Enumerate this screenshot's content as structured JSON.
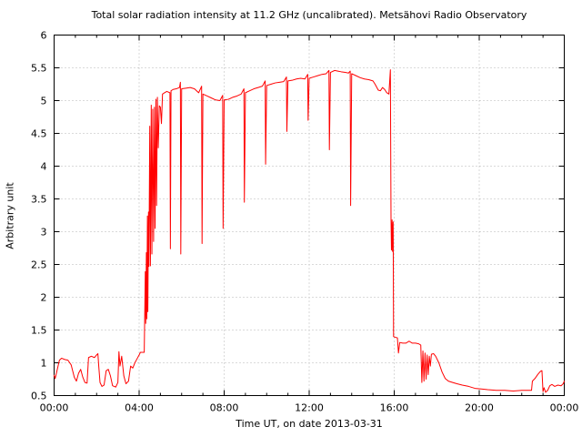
{
  "chart_data": {
    "type": "line",
    "title": "Total solar radiation intensity at 11.2 GHz (uncalibrated). Metsähovi Radio Observatory",
    "xlabel": "Time UT, on date 2013-03-31",
    "ylabel": "Arbitrary unit",
    "xlim": [
      0,
      24
    ],
    "ylim": [
      0.5,
      6
    ],
    "grid": true,
    "legend": "none",
    "line_color": "#ff0000",
    "grid_color": "#b4b4b4",
    "axis_color": "#000000",
    "background_color": "#ffffff",
    "x_major_ticks": [
      {
        "value": 0,
        "label": "00:00"
      },
      {
        "value": 4,
        "label": "04:00"
      },
      {
        "value": 8,
        "label": "08:00"
      },
      {
        "value": 12,
        "label": "12:00"
      },
      {
        "value": 16,
        "label": "16:00"
      },
      {
        "value": 20,
        "label": "20:00"
      },
      {
        "value": 24,
        "label": "00:00"
      }
    ],
    "x_minor_step": 1,
    "y_ticks": [
      {
        "value": 0.5,
        "label": "0.5"
      },
      {
        "value": 1,
        "label": "1"
      },
      {
        "value": 1.5,
        "label": "1.5"
      },
      {
        "value": 2,
        "label": "2"
      },
      {
        "value": 2.5,
        "label": "2.5"
      },
      {
        "value": 3,
        "label": "3"
      },
      {
        "value": 3.5,
        "label": "3.5"
      },
      {
        "value": 4,
        "label": "4"
      },
      {
        "value": 4.5,
        "label": "4.5"
      },
      {
        "value": 5,
        "label": "5"
      },
      {
        "value": 5.5,
        "label": "5.5"
      },
      {
        "value": 6,
        "label": "6"
      }
    ],
    "points": [
      [
        0.0,
        0.81
      ],
      [
        0.05,
        0.76
      ],
      [
        0.15,
        0.9
      ],
      [
        0.25,
        1.04
      ],
      [
        0.35,
        1.07
      ],
      [
        0.5,
        1.05
      ],
      [
        0.65,
        1.04
      ],
      [
        0.8,
        0.97
      ],
      [
        0.95,
        0.78
      ],
      [
        1.05,
        0.72
      ],
      [
        1.15,
        0.84
      ],
      [
        1.25,
        0.9
      ],
      [
        1.35,
        0.78
      ],
      [
        1.45,
        0.7
      ],
      [
        1.55,
        0.69
      ],
      [
        1.62,
        1.08
      ],
      [
        1.75,
        1.1
      ],
      [
        1.9,
        1.08
      ],
      [
        2.0,
        1.12
      ],
      [
        2.06,
        1.14
      ],
      [
        2.1,
        0.95
      ],
      [
        2.16,
        0.7
      ],
      [
        2.25,
        0.64
      ],
      [
        2.35,
        0.66
      ],
      [
        2.45,
        0.88
      ],
      [
        2.55,
        0.9
      ],
      [
        2.65,
        0.8
      ],
      [
        2.75,
        0.65
      ],
      [
        2.9,
        0.63
      ],
      [
        3.0,
        0.7
      ],
      [
        3.05,
        1.17
      ],
      [
        3.1,
        0.95
      ],
      [
        3.18,
        1.1
      ],
      [
        3.28,
        0.8
      ],
      [
        3.38,
        0.68
      ],
      [
        3.5,
        0.72
      ],
      [
        3.6,
        0.95
      ],
      [
        3.7,
        0.92
      ],
      [
        3.8,
        1.0
      ],
      [
        3.9,
        1.06
      ],
      [
        4.0,
        1.12
      ],
      [
        4.06,
        1.16
      ],
      [
        4.24,
        1.16
      ],
      [
        4.26,
        1.64
      ],
      [
        4.29,
        2.39
      ],
      [
        4.31,
        1.6
      ],
      [
        4.34,
        2.68
      ],
      [
        4.36,
        1.67
      ],
      [
        4.39,
        3.24
      ],
      [
        4.41,
        1.78
      ],
      [
        4.44,
        3.3
      ],
      [
        4.46,
        2.47
      ],
      [
        4.5,
        4.61
      ],
      [
        4.53,
        2.48
      ],
      [
        4.57,
        4.93
      ],
      [
        4.6,
        2.66
      ],
      [
        4.64,
        4.87
      ],
      [
        4.68,
        2.85
      ],
      [
        4.72,
        4.9
      ],
      [
        4.75,
        3.05
      ],
      [
        4.79,
        5.02
      ],
      [
        4.82,
        3.4
      ],
      [
        4.86,
        5.05
      ],
      [
        4.9,
        4.28
      ],
      [
        4.95,
        4.92
      ],
      [
        5.0,
        4.9
      ],
      [
        5.05,
        4.65
      ],
      [
        5.1,
        5.1
      ],
      [
        5.2,
        5.12
      ],
      [
        5.3,
        5.14
      ],
      [
        5.45,
        5.12
      ],
      [
        5.47,
        2.74
      ],
      [
        5.5,
        5.15
      ],
      [
        5.6,
        5.17
      ],
      [
        5.75,
        5.18
      ],
      [
        5.9,
        5.2
      ],
      [
        5.94,
        5.28
      ],
      [
        5.96,
        2.66
      ],
      [
        6.0,
        5.18
      ],
      [
        6.2,
        5.19
      ],
      [
        6.4,
        5.2
      ],
      [
        6.6,
        5.18
      ],
      [
        6.8,
        5.12
      ],
      [
        6.94,
        5.22
      ],
      [
        6.96,
        2.82
      ],
      [
        7.0,
        5.1
      ],
      [
        7.2,
        5.07
      ],
      [
        7.4,
        5.04
      ],
      [
        7.6,
        5.01
      ],
      [
        7.8,
        5.0
      ],
      [
        7.93,
        5.08
      ],
      [
        7.95,
        3.05
      ],
      [
        8.0,
        5.01
      ],
      [
        8.2,
        5.02
      ],
      [
        8.4,
        5.05
      ],
      [
        8.6,
        5.07
      ],
      [
        8.8,
        5.1
      ],
      [
        8.93,
        5.18
      ],
      [
        8.95,
        3.45
      ],
      [
        9.0,
        5.12
      ],
      [
        9.2,
        5.15
      ],
      [
        9.4,
        5.18
      ],
      [
        9.6,
        5.2
      ],
      [
        9.8,
        5.22
      ],
      [
        9.93,
        5.3
      ],
      [
        9.95,
        4.03
      ],
      [
        10.0,
        5.23
      ],
      [
        10.2,
        5.25
      ],
      [
        10.4,
        5.27
      ],
      [
        10.6,
        5.28
      ],
      [
        10.8,
        5.29
      ],
      [
        10.93,
        5.36
      ],
      [
        10.95,
        4.53
      ],
      [
        11.0,
        5.3
      ],
      [
        11.2,
        5.31
      ],
      [
        11.4,
        5.33
      ],
      [
        11.6,
        5.34
      ],
      [
        11.8,
        5.33
      ],
      [
        11.93,
        5.4
      ],
      [
        11.95,
        4.7
      ],
      [
        12.0,
        5.34
      ],
      [
        12.2,
        5.36
      ],
      [
        12.4,
        5.38
      ],
      [
        12.6,
        5.4
      ],
      [
        12.8,
        5.41
      ],
      [
        12.93,
        5.46
      ],
      [
        12.95,
        4.25
      ],
      [
        13.0,
        5.43
      ],
      [
        13.2,
        5.46
      ],
      [
        13.35,
        5.45
      ],
      [
        13.5,
        5.44
      ],
      [
        13.7,
        5.43
      ],
      [
        13.85,
        5.42
      ],
      [
        13.93,
        5.45
      ],
      [
        13.95,
        3.4
      ],
      [
        14.0,
        5.41
      ],
      [
        14.2,
        5.38
      ],
      [
        14.4,
        5.35
      ],
      [
        14.6,
        5.33
      ],
      [
        14.8,
        5.32
      ],
      [
        15.0,
        5.3
      ],
      [
        15.1,
        5.25
      ],
      [
        15.25,
        5.16
      ],
      [
        15.35,
        5.15
      ],
      [
        15.45,
        5.2
      ],
      [
        15.55,
        5.17
      ],
      [
        15.65,
        5.12
      ],
      [
        15.75,
        5.1
      ],
      [
        15.82,
        5.47
      ],
      [
        15.85,
        3.2
      ],
      [
        15.87,
        2.72
      ],
      [
        15.9,
        3.18
      ],
      [
        15.92,
        2.7
      ],
      [
        15.95,
        3.15
      ],
      [
        15.97,
        1.4
      ],
      [
        16.05,
        1.39
      ],
      [
        16.15,
        1.38
      ],
      [
        16.2,
        1.15
      ],
      [
        16.26,
        1.31
      ],
      [
        16.4,
        1.3
      ],
      [
        16.55,
        1.3
      ],
      [
        16.7,
        1.33
      ],
      [
        16.85,
        1.3
      ],
      [
        17.0,
        1.3
      ],
      [
        17.15,
        1.29
      ],
      [
        17.25,
        1.27
      ],
      [
        17.3,
        0.7
      ],
      [
        17.35,
        1.18
      ],
      [
        17.4,
        0.72
      ],
      [
        17.45,
        1.15
      ],
      [
        17.5,
        0.75
      ],
      [
        17.55,
        1.12
      ],
      [
        17.6,
        0.82
      ],
      [
        17.65,
        1.1
      ],
      [
        17.7,
        0.95
      ],
      [
        17.75,
        1.13
      ],
      [
        17.85,
        1.14
      ],
      [
        17.95,
        1.1
      ],
      [
        18.1,
        1.0
      ],
      [
        18.25,
        0.86
      ],
      [
        18.4,
        0.76
      ],
      [
        18.55,
        0.72
      ],
      [
        18.75,
        0.7
      ],
      [
        18.95,
        0.68
      ],
      [
        19.2,
        0.66
      ],
      [
        19.5,
        0.64
      ],
      [
        19.8,
        0.61
      ],
      [
        20.1,
        0.6
      ],
      [
        20.4,
        0.59
      ],
      [
        20.8,
        0.58
      ],
      [
        21.2,
        0.58
      ],
      [
        21.6,
        0.57
      ],
      [
        22.0,
        0.58
      ],
      [
        22.3,
        0.58
      ],
      [
        22.46,
        0.58
      ],
      [
        22.5,
        0.72
      ],
      [
        22.62,
        0.76
      ],
      [
        22.75,
        0.82
      ],
      [
        22.88,
        0.87
      ],
      [
        22.95,
        0.88
      ],
      [
        23.0,
        0.56
      ],
      [
        23.05,
        0.62
      ],
      [
        23.12,
        0.55
      ],
      [
        23.22,
        0.58
      ],
      [
        23.32,
        0.65
      ],
      [
        23.42,
        0.67
      ],
      [
        23.55,
        0.64
      ],
      [
        23.7,
        0.66
      ],
      [
        23.85,
        0.65
      ],
      [
        23.95,
        0.68
      ],
      [
        24.0,
        0.72
      ]
    ]
  }
}
